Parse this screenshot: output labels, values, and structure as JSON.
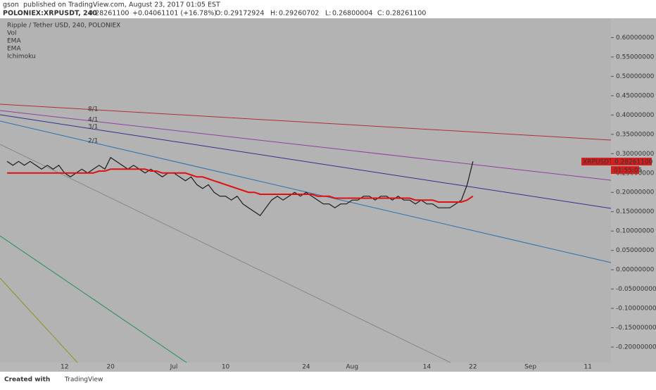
{
  "header": {
    "author": "gson",
    "published": "published on TradingView.com, August 23, 2017 01:05 EST",
    "symbol": "POLONIEX:XRPUSDT, 240",
    "last": "0.28261100",
    "change": "+0.04061101 (+16.78%)",
    "o_label": "O:",
    "open": "0.29172924",
    "h_label": "H:",
    "high": "0.29260702",
    "l_label": "L:",
    "low": "0.26800004",
    "c_label": "C:",
    "close": "0.28261100"
  },
  "legend": [
    "Ripple / Tether USD, 240, POLONIEX",
    "Vol",
    "EMA",
    "EMA",
    "Ichimoku"
  ],
  "fan_labels": [
    "8/1",
    "4/1",
    "3/1",
    "2/1"
  ],
  "price_tag": {
    "symbol": "XRPUSDT",
    "price": "0.28261100",
    "timer": "01:55:05"
  },
  "footer": {
    "created": "Created with",
    "brand": "TradingView"
  },
  "chart_data": {
    "type": "line",
    "categories": [
      null,
      null,
      null,
      null,
      null,
      null,
      null,
      null,
      null,
      null,
      "12",
      null,
      null,
      null,
      null,
      null,
      null,
      null,
      "20",
      null,
      null,
      null,
      null,
      null,
      null,
      null,
      null,
      null,
      null,
      "Jul",
      null,
      null,
      null,
      null,
      null,
      null,
      null,
      null,
      "10",
      null,
      null,
      null,
      null,
      null,
      null,
      null,
      null,
      null,
      null,
      null,
      null,
      null,
      "24",
      null,
      null,
      null,
      null,
      null,
      null,
      null,
      "Aug",
      null,
      null,
      null,
      null,
      null,
      null,
      null,
      null,
      null,
      null,
      null,
      null,
      "14",
      null,
      null,
      null,
      null,
      null,
      null,
      null,
      "22",
      null,
      null,
      null,
      null,
      null,
      null,
      null,
      null,
      null,
      "Sep",
      null,
      null,
      null,
      null,
      null,
      null,
      null,
      null,
      null,
      "11",
      null,
      null
    ],
    "series": [
      {
        "name": "XRPUSDT",
        "color": "#1a1a1a",
        "values": [
          0.28,
          0.27,
          0.28,
          0.27,
          0.28,
          0.27,
          0.26,
          0.27,
          0.26,
          0.27,
          0.25,
          0.24,
          0.25,
          0.26,
          0.25,
          0.26,
          0.27,
          0.26,
          0.29,
          0.28,
          0.27,
          0.26,
          0.27,
          0.26,
          0.25,
          0.26,
          0.25,
          0.24,
          0.25,
          0.25,
          0.24,
          0.23,
          0.24,
          0.22,
          0.21,
          0.22,
          0.2,
          0.19,
          0.19,
          0.18,
          0.19,
          0.17,
          0.16,
          0.15,
          0.14,
          0.16,
          0.18,
          0.19,
          0.18,
          0.19,
          0.2,
          0.19,
          0.2,
          0.19,
          0.18,
          0.17,
          0.17,
          0.16,
          0.17,
          0.17,
          0.18,
          0.18,
          0.19,
          0.19,
          0.18,
          0.19,
          0.19,
          0.18,
          0.19,
          0.18,
          0.18,
          0.17,
          0.18,
          0.17,
          0.17,
          0.16,
          0.16,
          0.16,
          0.17,
          0.18,
          0.22,
          0.28,
          null,
          null,
          null,
          null,
          null,
          null,
          null,
          null,
          null,
          null,
          null,
          null,
          null,
          null,
          null,
          null,
          null,
          null,
          null,
          null,
          null,
          null
        ]
      },
      {
        "name": "EMA",
        "color": "#e01010",
        "values": [
          0.25,
          0.25,
          0.25,
          0.25,
          0.25,
          0.25,
          0.25,
          0.25,
          0.25,
          0.25,
          0.25,
          0.25,
          0.25,
          0.25,
          0.25,
          0.25,
          0.255,
          0.255,
          0.26,
          0.26,
          0.26,
          0.26,
          0.26,
          0.26,
          0.26,
          0.255,
          0.255,
          0.25,
          0.25,
          0.25,
          0.25,
          0.25,
          0.245,
          0.24,
          0.24,
          0.235,
          0.23,
          0.225,
          0.22,
          0.215,
          0.21,
          0.205,
          0.2,
          0.2,
          0.195,
          0.195,
          0.195,
          0.195,
          0.195,
          0.195,
          0.195,
          0.195,
          0.195,
          0.195,
          0.19,
          0.19,
          0.19,
          0.185,
          0.185,
          0.185,
          0.185,
          0.185,
          0.185,
          0.185,
          0.185,
          0.185,
          0.185,
          0.185,
          0.185,
          0.185,
          0.185,
          0.18,
          0.18,
          0.18,
          0.18,
          0.175,
          0.175,
          0.175,
          0.175,
          0.175,
          0.18,
          0.19,
          null,
          null,
          null,
          null,
          null,
          null,
          null,
          null,
          null,
          null,
          null,
          null,
          null,
          null,
          null,
          null,
          null,
          null,
          null,
          null,
          null,
          null
        ]
      }
    ],
    "ylim": [
      -0.24,
      0.65
    ],
    "yticks": [
      {
        "value": 0.6,
        "label": "0.60000000"
      },
      {
        "value": 0.55,
        "label": "0.55000000"
      },
      {
        "value": 0.5,
        "label": "0.50000000"
      },
      {
        "value": 0.45,
        "label": "0.45000000"
      },
      {
        "value": 0.4,
        "label": "0.40000000"
      },
      {
        "value": 0.35,
        "label": "0.35000000"
      },
      {
        "value": 0.3,
        "label": "0.30000000"
      },
      {
        "value": 0.25,
        "label": "0.25000000"
      },
      {
        "value": 0.2,
        "label": "0.20000000"
      },
      {
        "value": 0.15,
        "label": "0.15000000"
      },
      {
        "value": 0.1,
        "label": "0.10000000"
      },
      {
        "value": 0.05,
        "label": "0.05000000"
      },
      {
        "value": 0,
        "label": "0.00000000"
      },
      {
        "value": -0.05,
        "label": "-0.05000000"
      },
      {
        "value": -0.1,
        "label": "-0.10000000"
      },
      {
        "value": -0.15,
        "label": "-0.15000000"
      },
      {
        "value": -0.2,
        "label": "-0.20000000"
      }
    ],
    "background": "#b3b3b3"
  }
}
